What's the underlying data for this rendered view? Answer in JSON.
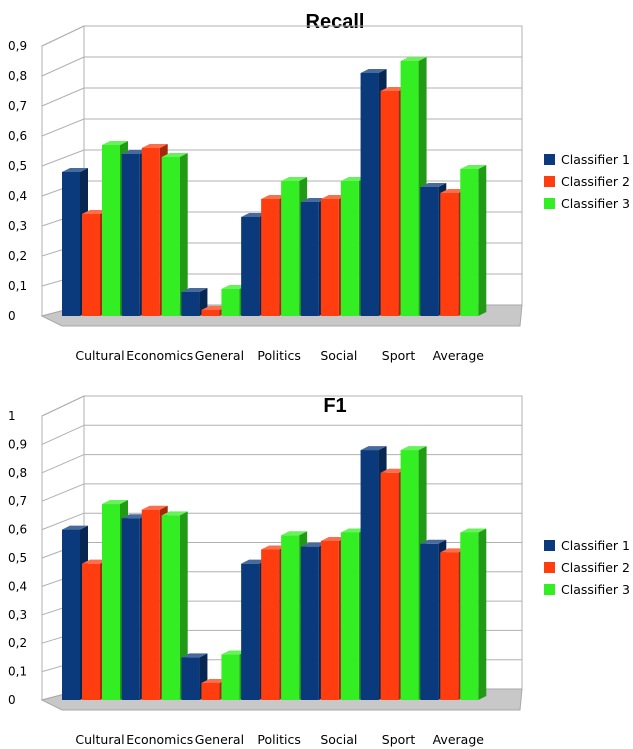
{
  "colors": {
    "classifier1": "#0a3a7c",
    "classifier2": "#ff3d0f",
    "classifier3": "#33ee22",
    "grid": "#b0b0b0",
    "floor": "#c8c8c8"
  },
  "chart_data": [
    {
      "type": "bar",
      "title": "Recall",
      "categories": [
        "Cultural",
        "Economics",
        "General",
        "Politics",
        "Social",
        "Sport",
        "Average"
      ],
      "yticks": [
        "0",
        "0,1",
        "0,2",
        "0,3",
        "0,4",
        "0,5",
        "0,6",
        "0,7",
        "0,8",
        "0,9"
      ],
      "ylim": [
        0,
        0.9
      ],
      "grid": true,
      "legend_position": "right",
      "series": [
        {
          "name": "Classifier 1",
          "values": [
            0.48,
            0.54,
            0.08,
            0.33,
            0.38,
            0.81,
            0.43
          ]
        },
        {
          "name": "Classifier 2",
          "values": [
            0.34,
            0.56,
            0.02,
            0.39,
            0.39,
            0.75,
            0.41
          ]
        },
        {
          "name": "Classifier 3",
          "values": [
            0.57,
            0.53,
            0.09,
            0.45,
            0.45,
            0.85,
            0.49
          ]
        }
      ]
    },
    {
      "type": "bar",
      "title": "F1",
      "categories": [
        "Cultural",
        "Economics",
        "General",
        "Politics",
        "Social",
        "Sport",
        "Average"
      ],
      "yticks": [
        "0",
        "0,1",
        "0,2",
        "0,3",
        "0,4",
        "0,5",
        "0,6",
        "0,7",
        "0,8",
        "0,9",
        "1"
      ],
      "ylim": [
        0,
        1
      ],
      "grid": true,
      "legend_position": "right",
      "series": [
        {
          "name": "Classifier 1",
          "values": [
            0.6,
            0.64,
            0.15,
            0.48,
            0.54,
            0.88,
            0.55
          ]
        },
        {
          "name": "Classifier 2",
          "values": [
            0.48,
            0.67,
            0.06,
            0.53,
            0.56,
            0.8,
            0.52
          ]
        },
        {
          "name": "Classifier 3",
          "values": [
            0.69,
            0.65,
            0.16,
            0.58,
            0.59,
            0.88,
            0.59
          ]
        }
      ]
    }
  ]
}
